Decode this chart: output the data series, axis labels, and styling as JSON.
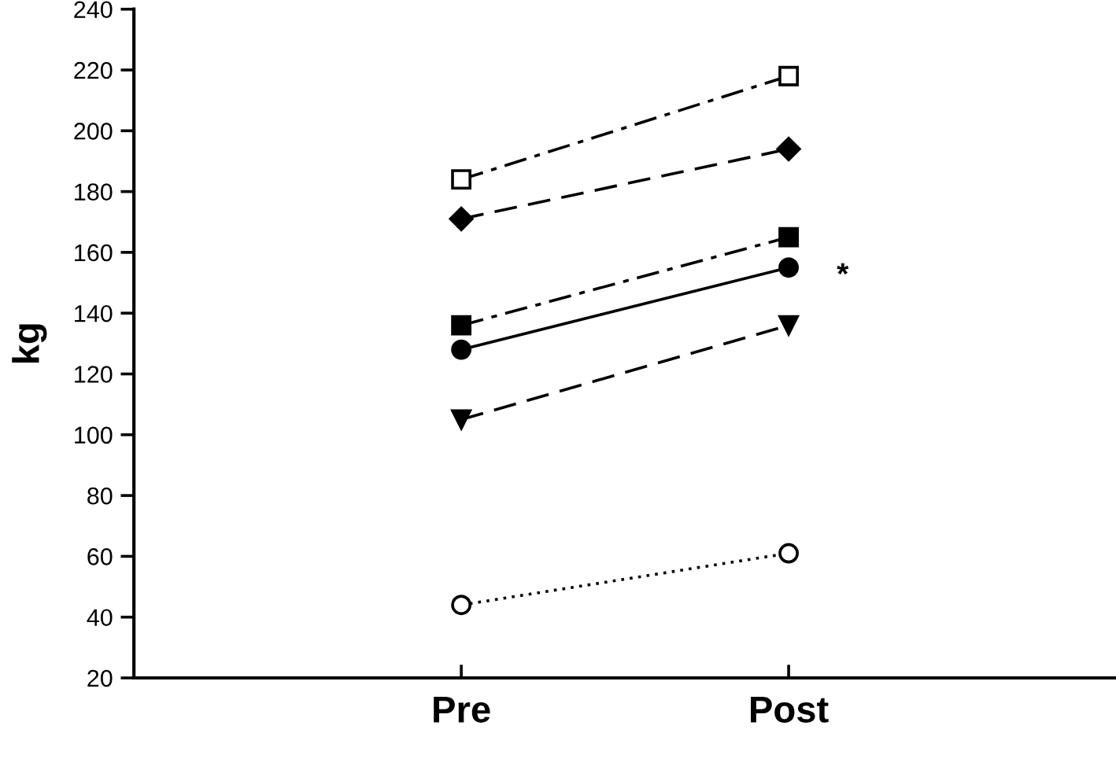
{
  "chart_data": {
    "type": "line",
    "ylabel": "kg",
    "categories": [
      "Pre",
      "Post"
    ],
    "series": [
      {
        "color": "#000000",
        "values": [
          184,
          218
        ],
        "colors": [
          "#ffffff",
          "#ffffff"
        ],
        "marker": "square",
        "line_style": "dashdot"
      },
      {
        "color": "#000000",
        "values": [
          171,
          194
        ],
        "marker": "diamond",
        "line_style": "dashed"
      },
      {
        "color": "#000000",
        "values": [
          136,
          165
        ],
        "marker": "square",
        "line_style": "dashdot"
      },
      {
        "color": "#000000",
        "values": [
          128,
          155
        ],
        "marker": "circle",
        "line_style": "solid"
      },
      {
        "color": "#000000",
        "values": [
          105,
          136
        ],
        "marker": "triangle",
        "line_style": "dashed"
      },
      {
        "color": "#000000",
        "values": [
          44,
          61
        ],
        "colors": [
          "#ffffff",
          "#ffffff"
        ],
        "marker": "circle",
        "line_style": "dotted"
      }
    ],
    "ylim": [
      20,
      240
    ],
    "yticks": [
      20,
      40,
      60,
      80,
      100,
      120,
      140,
      160,
      180,
      200,
      220,
      240
    ],
    "grid": false,
    "annotations": [
      {
        "text": "*",
        "x": "Post",
        "y": 155
      }
    ]
  }
}
